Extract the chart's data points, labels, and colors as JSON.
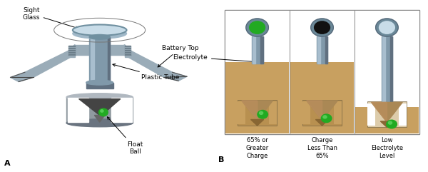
{
  "fig_width": 6.0,
  "fig_height": 2.41,
  "dpi": 100,
  "bg_color": "#ffffff",
  "left_panel": {
    "label": "A",
    "sight_glass_label": "Sight\nGlass",
    "battery_top_label": "Battery Top",
    "plastic_tube_label": "Plastic Tube",
    "float_ball_label": "Float\nBall",
    "colors": {
      "sight_glass_top": "#c8dce8",
      "sight_glass_side": "#a0b8c8",
      "sight_glass_rim": "#7090a0",
      "tube_light": "#a8bece",
      "tube_mid": "#8099aa",
      "tube_dark": "#607080",
      "battery_top_light": "#9aacb8",
      "battery_top_dark": "#6a7c88",
      "housing_light": "#b0b8c0",
      "housing_mid": "#909aa0",
      "housing_dark": "#6a7480",
      "cone_fill": "#444444",
      "cone_light": "#666666",
      "float_ball": "#22aa22",
      "float_ball_hl": "#55cc55"
    }
  },
  "right_panel": {
    "label": "B",
    "electrolyte_label": "Electrolyte",
    "electrolyte_color": "#c8a060",
    "electrolyte_dark": "#b89050",
    "panel_border": "#888888",
    "tube_light": "#a8bece",
    "tube_mid": "#8099aa",
    "tube_dark": "#607080",
    "cone_fill": "#aa8855",
    "cone_dark": "#886633",
    "cone_shadow": "#5a4422",
    "float_ball_color": "#22aa22",
    "float_ball_hl": "#55cc55",
    "indicator_bg": [
      "#22aa22",
      "#111111",
      "#c8dce8"
    ],
    "indicator_ring_outer": "#6a8898",
    "indicator_ring_inner": "#aabbcc",
    "labels": [
      "65% or\nGreater\nCharge",
      "Charge\nLess Than\n65%",
      "Low\nElectrolyte\nLevel"
    ],
    "elec_levels": [
      0.58,
      0.58,
      0.22
    ],
    "n_panels": 3
  }
}
